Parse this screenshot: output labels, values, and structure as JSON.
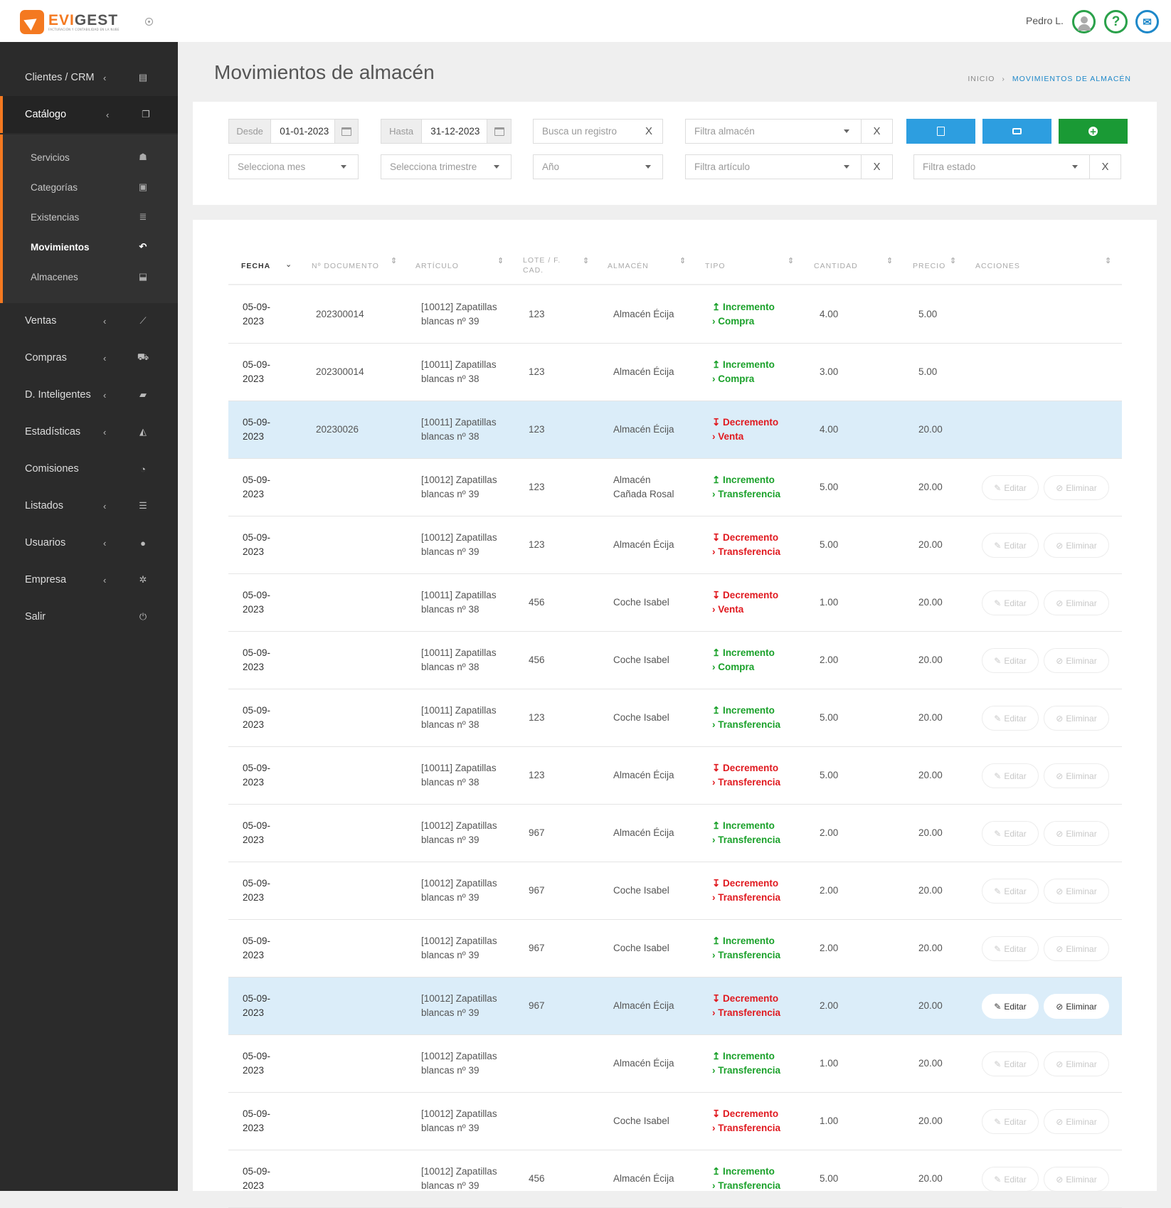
{
  "app": {
    "logo_text": "EVIGEST",
    "logo_tagline": "FACTURACIÓN Y CONTABILIDAD EN LA NUBE",
    "user_name": "Pedro L.",
    "help_label": "?"
  },
  "sidebar": {
    "items": [
      {
        "label": "Clientes / CRM",
        "chevron": "‹",
        "icon": "address-card-icon",
        "glyph": "▤"
      },
      {
        "label": "Catálogo",
        "chevron": "‹",
        "icon": "copy-icon",
        "glyph": "❐"
      },
      {
        "label": "Ventas",
        "chevron": "‹",
        "icon": "line-chart-icon",
        "glyph": "⟋"
      },
      {
        "label": "Compras",
        "chevron": "‹",
        "icon": "cart-icon",
        "glyph": "⛟"
      },
      {
        "label": "D. Inteligentes",
        "chevron": "‹",
        "icon": "folder-open-icon",
        "glyph": "▰"
      },
      {
        "label": "Estadísticas",
        "chevron": "‹",
        "icon": "area-chart-icon",
        "glyph": "◭"
      },
      {
        "label": "Comisiones",
        "chevron": "",
        "icon": "pie-chart-icon",
        "glyph": "◔"
      },
      {
        "label": "Listados",
        "chevron": "‹",
        "icon": "list-icon",
        "glyph": "☰"
      },
      {
        "label": "Usuarios",
        "chevron": "‹",
        "icon": "user-icon",
        "glyph": "●"
      },
      {
        "label": "Empresa",
        "chevron": "‹",
        "icon": "gear-icon",
        "glyph": "✲"
      },
      {
        "label": "Salir",
        "chevron": "",
        "icon": "power-icon",
        "glyph": "⏻"
      }
    ],
    "subitems": [
      {
        "label": "Servicios",
        "icon": "users-icon",
        "glyph": "☗"
      },
      {
        "label": "Categorías",
        "icon": "archive-icon",
        "glyph": "▣"
      },
      {
        "label": "Existencias",
        "icon": "list-ol-icon",
        "glyph": "≣"
      },
      {
        "label": "Movimientos",
        "icon": "reply-icon",
        "glyph": "↶"
      },
      {
        "label": "Almacenes",
        "icon": "download-icon",
        "glyph": "⬓"
      }
    ]
  },
  "page": {
    "title": "Movimientos de almacén",
    "breadcrumb": [
      "INICIO",
      "MOVIMIENTOS DE ALMACÉN"
    ],
    "breadcrumb_sep": "›"
  },
  "filters": {
    "desde_label": "Desde",
    "desde_value": "01-01-2023",
    "hasta_label": "Hasta",
    "hasta_value": "31-12-2023",
    "search_placeholder": "Busca un registro",
    "almacen_placeholder": "Filtra almacén",
    "mes_placeholder": "Selecciona mes",
    "trimestre_placeholder": "Selecciona trimestre",
    "anio_placeholder": "Año",
    "articulo_placeholder": "Filtra artículo",
    "estado_placeholder": "Filtra estado",
    "clear_label": "X",
    "export_color": "#2d9ee0",
    "print_color": "#2d9ee0",
    "add_color": "#1a9a35"
  },
  "table": {
    "columns": [
      "FECHA",
      "Nº DOCUMENTO",
      "ARTÍCULO",
      "LOTE / F.",
      "CAD.",
      "ALMACÉN",
      "TIPO",
      "CANTIDAD",
      "PRECIO",
      "ACCIONES"
    ],
    "edit_label": "Editar",
    "delete_label": "Eliminar",
    "rows": [
      {
        "d1": "05-09-",
        "d2": "2023",
        "doc": "202300014",
        "a1": "[10012] Zapatillas",
        "a2": "blancas nº 39",
        "lote": "123",
        "al1": "Almacén Écija",
        "al2": "",
        "t1": "↥ Incremento",
        "t2": "› Compra",
        "tc": "inc",
        "cant": "4.00",
        "prec": "5.00",
        "actions": false,
        "hl": false
      },
      {
        "d1": "05-09-",
        "d2": "2023",
        "doc": "202300014",
        "a1": "[10011] Zapatillas",
        "a2": "blancas nº 38",
        "lote": "123",
        "al1": "Almacén Écija",
        "al2": "",
        "t1": "↥ Incremento",
        "t2": "› Compra",
        "tc": "inc",
        "cant": "3.00",
        "prec": "5.00",
        "actions": false,
        "hl": false
      },
      {
        "d1": "05-09-",
        "d2": "2023",
        "doc": "20230026",
        "a1": "[10011] Zapatillas",
        "a2": "blancas nº 38",
        "lote": "123",
        "al1": "Almacén Écija",
        "al2": "",
        "t1": "↧ Decremento",
        "t2": "› Venta",
        "tc": "dec",
        "cant": "4.00",
        "prec": "20.00",
        "actions": false,
        "hl": true
      },
      {
        "d1": "05-09-",
        "d2": "2023",
        "doc": "",
        "a1": "[10012] Zapatillas",
        "a2": "blancas nº 39",
        "lote": "123",
        "al1": "Almacén",
        "al2": "Cañada Rosal",
        "t1": "↥ Incremento",
        "t2": "› Transferencia",
        "tc": "inc",
        "cant": "5.00",
        "prec": "20.00",
        "actions": true,
        "hl": false
      },
      {
        "d1": "05-09-",
        "d2": "2023",
        "doc": "",
        "a1": "[10012] Zapatillas",
        "a2": "blancas nº 39",
        "lote": "123",
        "al1": "Almacén Écija",
        "al2": "",
        "t1": "↧ Decremento",
        "t2": "› Transferencia",
        "tc": "dec",
        "cant": "5.00",
        "prec": "20.00",
        "actions": true,
        "hl": false
      },
      {
        "d1": "05-09-",
        "d2": "2023",
        "doc": "",
        "a1": "[10011] Zapatillas",
        "a2": "blancas nº 38",
        "lote": "456",
        "al1": "Coche Isabel",
        "al2": "",
        "t1": "↧ Decremento",
        "t2": "› Venta",
        "tc": "dec",
        "cant": "1.00",
        "prec": "20.00",
        "actions": true,
        "hl": false
      },
      {
        "d1": "05-09-",
        "d2": "2023",
        "doc": "",
        "a1": "[10011] Zapatillas",
        "a2": "blancas nº 38",
        "lote": "456",
        "al1": "Coche Isabel",
        "al2": "",
        "t1": "↥ Incremento",
        "t2": "› Compra",
        "tc": "inc",
        "cant": "2.00",
        "prec": "20.00",
        "actions": true,
        "hl": false
      },
      {
        "d1": "05-09-",
        "d2": "2023",
        "doc": "",
        "a1": "[10011] Zapatillas",
        "a2": "blancas nº 38",
        "lote": "123",
        "al1": "Coche Isabel",
        "al2": "",
        "t1": "↥ Incremento",
        "t2": "› Transferencia",
        "tc": "inc",
        "cant": "5.00",
        "prec": "20.00",
        "actions": true,
        "hl": false
      },
      {
        "d1": "05-09-",
        "d2": "2023",
        "doc": "",
        "a1": "[10011] Zapatillas",
        "a2": "blancas nº 38",
        "lote": "123",
        "al1": "Almacén Écija",
        "al2": "",
        "t1": "↧ Decremento",
        "t2": "› Transferencia",
        "tc": "dec",
        "cant": "5.00",
        "prec": "20.00",
        "actions": true,
        "hl": false
      },
      {
        "d1": "05-09-",
        "d2": "2023",
        "doc": "",
        "a1": "[10012] Zapatillas",
        "a2": "blancas nº 39",
        "lote": "967",
        "al1": "Almacén Écija",
        "al2": "",
        "t1": "↥ Incremento",
        "t2": "› Transferencia",
        "tc": "inc",
        "cant": "2.00",
        "prec": "20.00",
        "actions": true,
        "hl": false
      },
      {
        "d1": "05-09-",
        "d2": "2023",
        "doc": "",
        "a1": "[10012] Zapatillas",
        "a2": "blancas nº 39",
        "lote": "967",
        "al1": "Coche Isabel",
        "al2": "",
        "t1": "↧ Decremento",
        "t2": "› Transferencia",
        "tc": "dec",
        "cant": "2.00",
        "prec": "20.00",
        "actions": true,
        "hl": false
      },
      {
        "d1": "05-09-",
        "d2": "2023",
        "doc": "",
        "a1": "[10012] Zapatillas",
        "a2": "blancas nº 39",
        "lote": "967",
        "al1": "Coche Isabel",
        "al2": "",
        "t1": "↥ Incremento",
        "t2": "› Transferencia",
        "tc": "inc",
        "cant": "2.00",
        "prec": "20.00",
        "actions": true,
        "hl": false
      },
      {
        "d1": "05-09-",
        "d2": "2023",
        "doc": "",
        "a1": "[10012] Zapatillas",
        "a2": "blancas nº 39",
        "lote": "967",
        "al1": "Almacén Écija",
        "al2": "",
        "t1": "↧ Decremento",
        "t2": "› Transferencia",
        "tc": "dec",
        "cant": "2.00",
        "prec": "20.00",
        "actions": true,
        "hl": true
      },
      {
        "d1": "05-09-",
        "d2": "2023",
        "doc": "",
        "a1": "[10012] Zapatillas",
        "a2": "blancas nº 39",
        "lote": "",
        "al1": "Almacén Écija",
        "al2": "",
        "t1": "↥ Incremento",
        "t2": "› Transferencia",
        "tc": "inc",
        "cant": "1.00",
        "prec": "20.00",
        "actions": true,
        "hl": false
      },
      {
        "d1": "05-09-",
        "d2": "2023",
        "doc": "",
        "a1": "[10012] Zapatillas",
        "a2": "blancas nº 39",
        "lote": "",
        "al1": "Coche Isabel",
        "al2": "",
        "t1": "↧ Decremento",
        "t2": "› Transferencia",
        "tc": "dec",
        "cant": "1.00",
        "prec": "20.00",
        "actions": true,
        "hl": false
      },
      {
        "d1": "05-09-",
        "d2": "2023",
        "doc": "",
        "a1": "[10012] Zapatillas",
        "a2": "blancas nº 39",
        "lote": "456",
        "al1": "Almacén Écija",
        "al2": "",
        "t1": "↥ Incremento",
        "t2": "› Transferencia",
        "tc": "inc",
        "cant": "5.00",
        "prec": "20.00",
        "actions": true,
        "hl": false
      }
    ]
  }
}
